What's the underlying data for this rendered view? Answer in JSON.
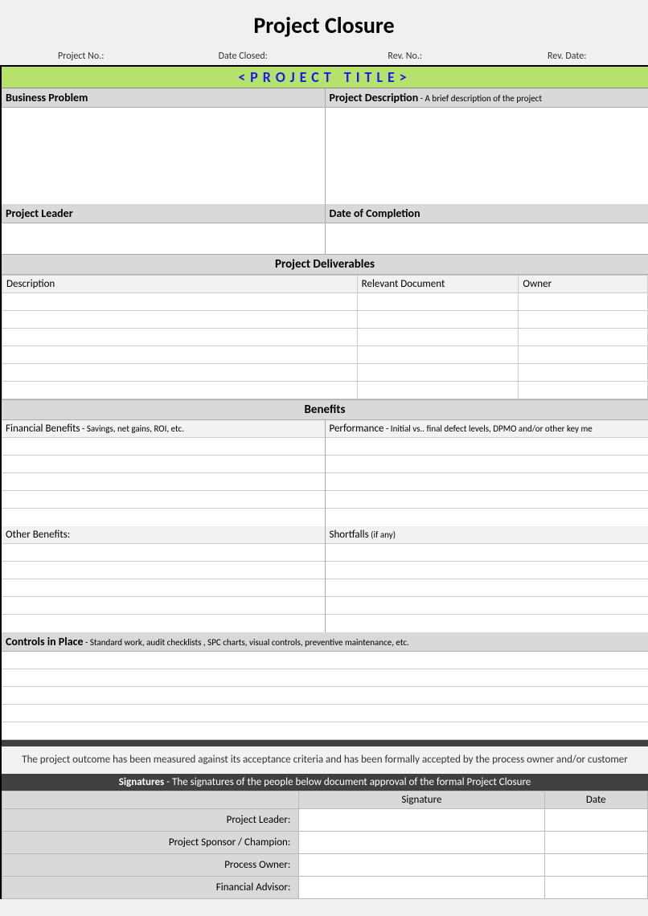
{
  "doc_title": "Project Closure",
  "meta": {
    "project_no": "Project No.:",
    "date_closed": "Date Closed:",
    "rev_no": "Rev. No.:",
    "rev_date": "Rev. Date:"
  },
  "project_title": "<PROJECT TITLE>",
  "sections": {
    "business_problem": "Business Problem",
    "project_description": "Project Description",
    "project_description_sub": " - A brief description of the project",
    "project_leader": "Project Leader",
    "date_completion": "Date of Completion",
    "deliverables": "Project Deliverables",
    "deliverables_cols": {
      "description": "Description",
      "document": "Relevant Document",
      "owner": "Owner"
    },
    "benefits": "Benefits",
    "financial": "Financial Benefits",
    "financial_sub": " - Savings, net gains, ROI, etc.",
    "performance": "Performance",
    "performance_sub": " - Initial vs.. final defect levels, DPMO and/or other key me",
    "other_benefits": "Other Benefits:",
    "shortfalls": "Shortfalls",
    "shortfalls_sub": " (if any)",
    "controls": "Controls in Place",
    "controls_sub": " - Standard work, audit checklists , SPC charts, visual controls, preventive maintenance, etc."
  },
  "acceptance_text": "The project outcome has been measured against its acceptance criteria and has been formally accepted by the process owner and/or customer",
  "signatures": {
    "title_bold": "Signatures",
    "title_rest": " - The signatures of the people below document approval of the formal Project Closure",
    "col_signature": "Signature",
    "col_date": "Date",
    "roles": [
      "Project Leader:",
      "Project Sponsor / Champion:",
      "Process Owner:",
      "Financial Advisor:"
    ]
  },
  "colors": {
    "page_bg": "#f0f0f0",
    "title_bar_bg": "#b4e26b",
    "title_bar_text": "#1a1af0",
    "header_bg": "#d9d9d9",
    "light_header_bg": "#f2f2f2",
    "dark_band": "#404040",
    "border": "#cccccc"
  }
}
